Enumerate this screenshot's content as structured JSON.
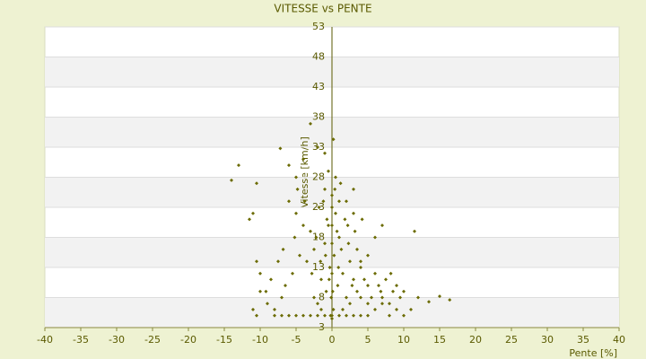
{
  "chart_data": {
    "type": "scatter",
    "title": "VITESSE vs PENTE",
    "x_label": "Pente [%]",
    "y_label": "Vitesse [km/h]",
    "color": "#6b6b00",
    "grid": true,
    "xlim": [
      -40,
      40
    ],
    "xticks": [
      -40,
      -35,
      -30,
      -25,
      -20,
      -15,
      -10,
      -5,
      0,
      5,
      10,
      15,
      20,
      25,
      30,
      35,
      40
    ],
    "ylim": [
      3,
      53
    ],
    "yticks": [
      3,
      8,
      13,
      18,
      23,
      28,
      33,
      38,
      43,
      48,
      53
    ],
    "x": [
      0,
      0.5,
      -0.5,
      1,
      -1,
      0.3,
      -0.3,
      1.5,
      -1.5,
      0.8,
      -0.8,
      2,
      -2,
      0.2,
      -0.2,
      2.5,
      -2.5,
      3,
      -3,
      1,
      -1,
      0.5,
      -0.5,
      1.2,
      -1.8,
      2.2,
      3.5,
      4,
      5,
      6,
      7,
      8,
      9,
      10,
      11,
      12,
      4,
      5,
      6,
      7,
      3,
      4.5,
      6.5,
      8.5,
      -4,
      -5,
      -6,
      -4.5,
      -5.5,
      -6.5,
      -7,
      -8,
      -9,
      -10,
      -10.5,
      -11,
      -10,
      -10.5,
      -11,
      -11.5,
      -10.5,
      -13,
      -14,
      -7.2,
      -6,
      -5,
      -4,
      -3,
      0.2,
      -2,
      -1,
      2,
      3,
      4,
      5,
      6,
      7,
      8,
      9,
      10,
      11.5,
      13.5,
      15,
      16.4,
      0,
      1,
      2,
      3,
      4,
      5,
      -1,
      -2,
      -3,
      -4,
      -5,
      -6,
      -7,
      -8,
      0,
      1.5,
      -1.5,
      2.5,
      -2.5,
      3.5,
      -3.5,
      0.7,
      -0.7,
      1.8,
      -1.2,
      0.4,
      -0.4,
      0.1,
      -0.1,
      2.8,
      -2.8,
      5.5,
      6.8,
      7.5,
      8.2,
      9.5,
      -5.2,
      -6.8,
      -7.5,
      -8.5,
      -9.2,
      1.3,
      -1.6,
      2.3,
      -2.2,
      3.2,
      -3.8,
      4.2,
      -4.8,
      0.9,
      -0.9,
      0,
      0,
      0,
      0
    ],
    "values": [
      25,
      22,
      20,
      18,
      17,
      15,
      13,
      12,
      11,
      10,
      9,
      8,
      7,
      6,
      5,
      14,
      16,
      11,
      19,
      24,
      26,
      28,
      29,
      27,
      23,
      20,
      9,
      8,
      7,
      6,
      8,
      7,
      6,
      9,
      6,
      8,
      13,
      15,
      18,
      20,
      22,
      11,
      10,
      9,
      20,
      22,
      24,
      15,
      12,
      10,
      8,
      6,
      7,
      9,
      5,
      6,
      12,
      14,
      22,
      21,
      27,
      30,
      27.5,
      32.8,
      30,
      28,
      31,
      36.9,
      34.3,
      33,
      32,
      24,
      26,
      14,
      10,
      12,
      7,
      5,
      10,
      5,
      19,
      7.3,
      8.2,
      7.6,
      5,
      5,
      5,
      5,
      5,
      5,
      5,
      5,
      5,
      5,
      5,
      5,
      5,
      5,
      4.5,
      6,
      6,
      7,
      8,
      16,
      14,
      19,
      21,
      21,
      24,
      26,
      11,
      9,
      8,
      10,
      12,
      8,
      9,
      11,
      12,
      8,
      18,
      16,
      14,
      11,
      9,
      16,
      14,
      17,
      18,
      19,
      24,
      21,
      26,
      13,
      15,
      12,
      17,
      20,
      23
    ]
  }
}
